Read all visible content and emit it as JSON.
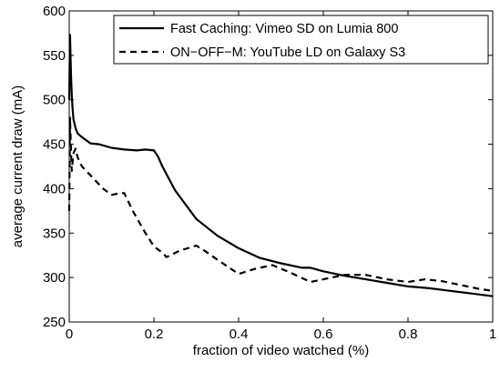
{
  "chart_data": {
    "type": "line",
    "title": "",
    "xlabel": "fraction of video watched (%)",
    "ylabel": "average current draw (mA)",
    "xlim": [
      0,
      1
    ],
    "ylim": [
      250,
      600
    ],
    "xticks": [
      0,
      0.2,
      0.4,
      0.6,
      0.8,
      1
    ],
    "xtick_labels": [
      "0",
      "0.2",
      "0.4",
      "0.6",
      "0.8",
      "1"
    ],
    "yticks": [
      250,
      300,
      350,
      400,
      450,
      500,
      550,
      600
    ],
    "ytick_labels": [
      "250",
      "300",
      "350",
      "400",
      "450",
      "500",
      "550",
      "600"
    ],
    "grid": false,
    "legend_position": "top-right",
    "series": [
      {
        "name": "Fast Caching: Vimeo SD on Lumia 800",
        "line_style": "solid",
        "color": "#000000",
        "x": [
          0,
          0.002,
          0.004,
          0.006,
          0.008,
          0.01,
          0.015,
          0.02,
          0.03,
          0.05,
          0.07,
          0.1,
          0.13,
          0.16,
          0.18,
          0.2,
          0.21,
          0.22,
          0.25,
          0.3,
          0.35,
          0.4,
          0.45,
          0.5,
          0.55,
          0.57,
          0.6,
          0.65,
          0.7,
          0.75,
          0.8,
          0.85,
          0.9,
          0.95,
          1.0
        ],
        "y": [
          500,
          573,
          530,
          505,
          490,
          478,
          468,
          462,
          458,
          451,
          450,
          446,
          444,
          443,
          444,
          443,
          436,
          425,
          398,
          366,
          347,
          333,
          322,
          316,
          311,
          311,
          307,
          302,
          298,
          294,
          290,
          288,
          285,
          282,
          279
        ]
      },
      {
        "name": "ON−OFF−M: YouTube LD on Galaxy S3",
        "line_style": "dashed",
        "color": "#000000",
        "x": [
          0,
          0.002,
          0.004,
          0.006,
          0.008,
          0.01,
          0.015,
          0.02,
          0.03,
          0.05,
          0.08,
          0.1,
          0.12,
          0.13,
          0.15,
          0.18,
          0.2,
          0.22,
          0.23,
          0.26,
          0.3,
          0.32,
          0.35,
          0.4,
          0.44,
          0.48,
          0.52,
          0.57,
          0.6,
          0.65,
          0.7,
          0.75,
          0.8,
          0.84,
          0.88,
          0.93,
          0.97,
          1.0
        ],
        "y": [
          375,
          480,
          445,
          420,
          430,
          440,
          445,
          435,
          425,
          415,
          400,
          393,
          395,
          395,
          375,
          350,
          335,
          328,
          323,
          330,
          336,
          330,
          320,
          304,
          310,
          314,
          306,
          295,
          298,
          303,
          303,
          298,
          295,
          298,
          296,
          291,
          287,
          285
        ]
      }
    ]
  }
}
